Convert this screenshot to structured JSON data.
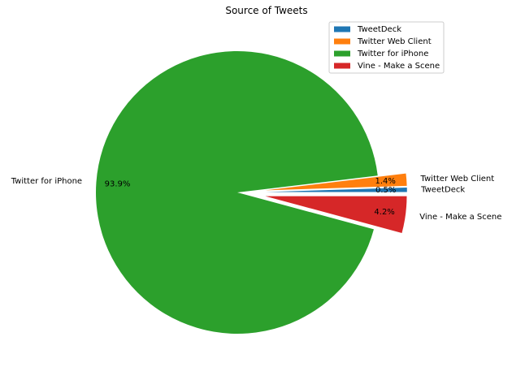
{
  "chart_data": {
    "type": "pie",
    "title": "Source of Tweets",
    "slices": [
      {
        "label": "TweetDeck",
        "value": 0.5,
        "pct_label": "0.5%",
        "color": "#1f77b4",
        "explode": 0.2
      },
      {
        "label": "Twitter Web Client",
        "value": 1.4,
        "pct_label": "1.4%",
        "color": "#ff7f0e",
        "explode": 0.2
      },
      {
        "label": "Twitter for iPhone",
        "value": 93.9,
        "pct_label": "93.9%",
        "color": "#2ca02c",
        "explode": 0.0
      },
      {
        "label": "Vine - Make a Scene",
        "value": 4.2,
        "pct_label": "4.2%",
        "color": "#d62728",
        "explode": 0.2
      }
    ],
    "legend": {
      "placement": "top-right",
      "entries": [
        "TweetDeck",
        "Twitter Web Client",
        "Twitter for iPhone",
        "Vine - Make a Scene"
      ]
    }
  }
}
